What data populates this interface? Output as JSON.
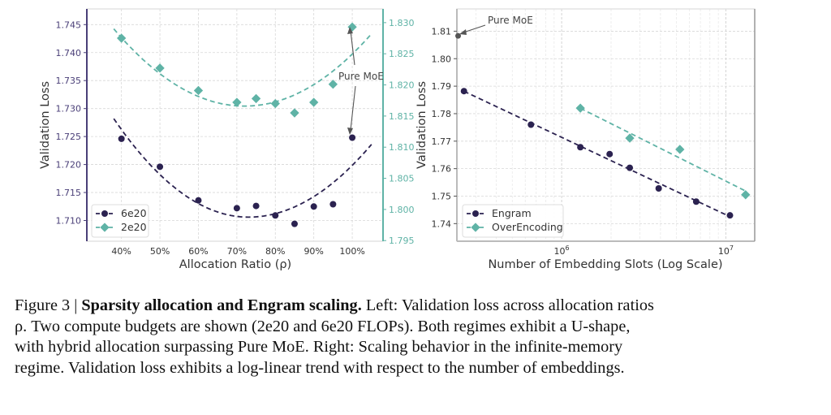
{
  "colors": {
    "dark": "#2b2250",
    "teal": "#5fb3a6",
    "left_axis": "#4a3f78",
    "right_axis_teal": "#5fb3a6",
    "grid": "#d8d8d8",
    "annotation": "#555555"
  },
  "chart_data": [
    {
      "type": "scatter",
      "title": "",
      "xlabel": "Allocation Ratio (ρ)",
      "ylabel_left": "Validation Loss",
      "ylabel_right": "Validation Loss",
      "x_ticks": [
        "40%",
        "50%",
        "60%",
        "70%",
        "80%",
        "90%",
        "100%"
      ],
      "x_tick_values": [
        40,
        50,
        60,
        70,
        80,
        90,
        100
      ],
      "xlim": [
        31,
        108
      ],
      "ylim_left": [
        1.7063,
        1.7478
      ],
      "ylim_right": [
        1.7949,
        1.8322
      ],
      "y_ticks_left": [
        "1.710",
        "1.715",
        "1.720",
        "1.725",
        "1.730",
        "1.735",
        "1.740",
        "1.745"
      ],
      "y_tick_values_left": [
        1.71,
        1.715,
        1.72,
        1.725,
        1.73,
        1.735,
        1.74,
        1.745
      ],
      "y_ticks_right": [
        "1.795",
        "1.800",
        "1.805",
        "1.810",
        "1.815",
        "1.820",
        "1.825",
        "1.830"
      ],
      "y_tick_values_right": [
        1.795,
        1.8,
        1.805,
        1.81,
        1.815,
        1.82,
        1.825,
        1.83
      ],
      "grid": true,
      "legend_position": "bottom-left",
      "series": [
        {
          "name": "6e20",
          "axis": "left",
          "marker": "circle",
          "color": "#2b2250",
          "x": [
            40,
            50,
            60,
            70,
            75,
            80,
            85,
            90,
            95,
            100
          ],
          "y": [
            1.7246,
            1.7196,
            1.7136,
            1.7122,
            1.7126,
            1.7109,
            1.7094,
            1.7125,
            1.7129,
            1.7248
          ],
          "fit": {
            "type": "quadratic",
            "x_range": [
              38,
              105
            ],
            "y_start": 1.7282,
            "y_min": 1.7106,
            "x_min": 73,
            "y_end": 1.7236
          }
        },
        {
          "name": "2e20",
          "axis": "right",
          "marker": "diamond",
          "color": "#5fb3a6",
          "x": [
            40,
            50,
            60,
            70,
            75,
            80,
            85,
            90,
            95,
            100
          ],
          "y": [
            1.8275,
            1.8227,
            1.8191,
            1.8172,
            1.8178,
            1.817,
            1.8155,
            1.8172,
            1.8201,
            1.8293
          ],
          "fit": {
            "type": "quadratic",
            "x_range": [
              38,
              105
            ],
            "y_start": 1.829,
            "y_min": 1.8166,
            "x_min": 72,
            "y_end": 1.8282
          }
        }
      ],
      "annotations": [
        {
          "text": "Pure MoE",
          "points_to": [
            {
              "series": "2e20",
              "x": 100
            },
            {
              "series": "6e20",
              "x": 100
            }
          ]
        }
      ]
    },
    {
      "type": "scatter",
      "title": "",
      "xlabel": "Number of Embedding Slots (Log Scale)",
      "ylabel": "Validation Loss",
      "x_scale": "log",
      "x_ticks": [
        "10^6",
        "10^7"
      ],
      "x_tick_values": [
        1000000,
        10000000
      ],
      "xlim": [
        230000,
        15000000
      ],
      "ylim": [
        1.7336,
        1.8181
      ],
      "y_ticks": [
        "1.74",
        "1.75",
        "1.76",
        "1.77",
        "1.78",
        "1.79",
        "1.80",
        "1.81"
      ],
      "y_tick_values": [
        1.74,
        1.75,
        1.76,
        1.77,
        1.78,
        1.79,
        1.8,
        1.81
      ],
      "grid": true,
      "legend_position": "bottom-left",
      "series": [
        {
          "name": "Engram",
          "marker": "circle",
          "color": "#2b2250",
          "x": [
            254000,
            650000,
            1300000,
            1960000,
            2600000,
            3900000,
            6600000,
            10600000
          ],
          "y": [
            1.7882,
            1.776,
            1.7678,
            1.7653,
            1.7603,
            1.7528,
            1.748,
            1.743
          ],
          "fit": {
            "type": "log-linear"
          }
        },
        {
          "name": "OverEncoding",
          "marker": "diamond",
          "color": "#5fb3a6",
          "x": [
            1300000,
            2600000,
            5250000,
            13200000
          ],
          "y": [
            1.782,
            1.7711,
            1.767,
            1.7505
          ],
          "fit": {
            "type": "log-linear"
          }
        }
      ],
      "extra_points": [
        {
          "label": "Pure MoE",
          "x": 234000,
          "y": 1.8083,
          "color": "#555555"
        }
      ],
      "annotations": [
        {
          "text": "Pure MoE",
          "points_to": "Pure MoE point"
        }
      ]
    }
  ],
  "caption": {
    "prefix": "Figure 3 | ",
    "bold": "Sparsity allocation and Engram scaling.",
    "lines": [
      " Left: Validation loss across allocation ratios",
      "ρ. Two compute budgets are shown (2e20 and 6e20 FLOPs). Both regimes exhibit a U-shape,",
      "with hybrid allocation surpassing Pure MoE. Right: Scaling behavior in the infinite-memory",
      "regime. Validation loss exhibits a log-linear trend with respect to the number of embeddings."
    ]
  }
}
